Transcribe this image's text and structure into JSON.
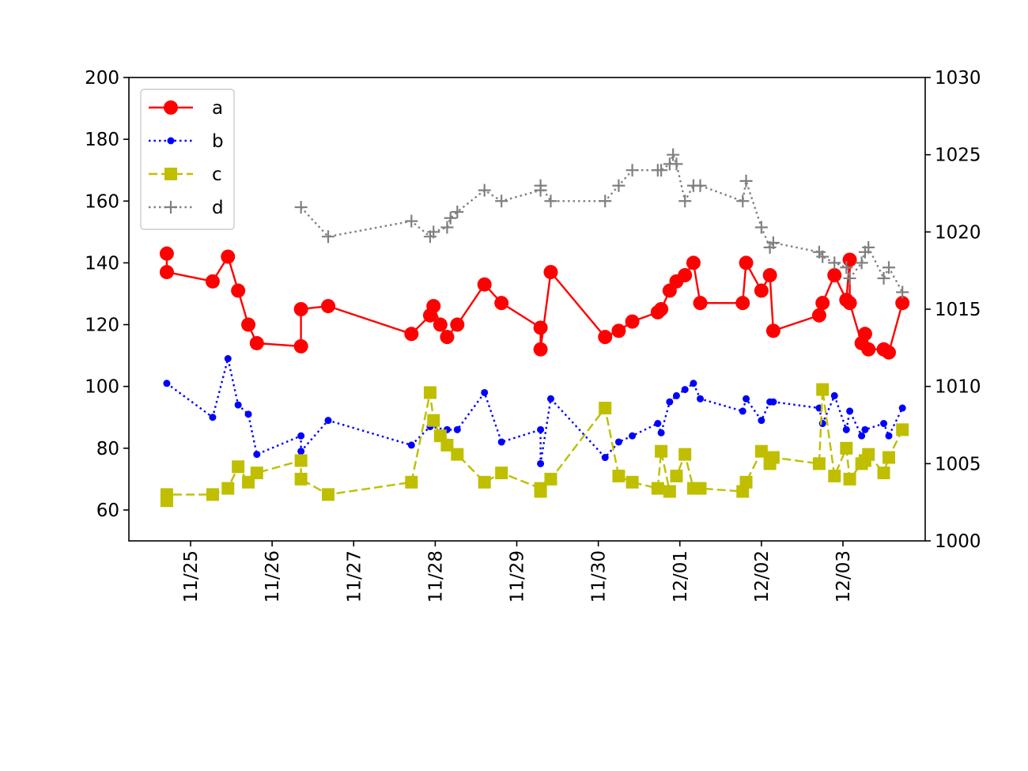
{
  "chart_data": {
    "type": "line",
    "title": "",
    "xlabel": "",
    "ylabel": "",
    "x_tick_labels": [
      "11/25",
      "11/26",
      "11/27",
      "11/28",
      "11/29",
      "11/30",
      "12/01",
      "12/02",
      "12/03"
    ],
    "ylim_left": [
      50,
      200
    ],
    "yticks_left": [
      60,
      80,
      100,
      120,
      140,
      160,
      180,
      200
    ],
    "ylim_right": [
      1000,
      1030
    ],
    "yticks_right": [
      1000,
      1005,
      1010,
      1015,
      1020,
      1025,
      1030
    ],
    "grid": false,
    "legend_position": "upper-left",
    "series": [
      {
        "name": "a",
        "axis": "left",
        "color": "#ff0000",
        "line_style": "solid",
        "marker": "circle",
        "points": [
          [
            "11/24 17:00",
            143
          ],
          [
            "11/24 17:00",
            137
          ],
          [
            "11/25 06:30",
            134
          ],
          [
            "11/25 11:00",
            142
          ],
          [
            "11/25 14:00",
            131
          ],
          [
            "11/25 17:00",
            120
          ],
          [
            "11/25 19:30",
            114
          ],
          [
            "11/26 08:30",
            113
          ],
          [
            "11/26 08:30",
            125
          ],
          [
            "11/26 16:30",
            126
          ],
          [
            "11/27 17:00",
            117
          ],
          [
            "11/27 22:30",
            123
          ],
          [
            "11/27 23:30",
            126
          ],
          [
            "11/28 01:30",
            120
          ],
          [
            "11/28 03:30",
            116
          ],
          [
            "11/28 06:30",
            120
          ],
          [
            "11/28 14:30",
            133
          ],
          [
            "11/28 19:30",
            127
          ],
          [
            "11/29 07:00",
            119
          ],
          [
            "11/29 07:00",
            112
          ],
          [
            "11/29 10:00",
            137
          ],
          [
            "11/30 02:00",
            116
          ],
          [
            "11/30 06:00",
            118
          ],
          [
            "11/30 10:00",
            121
          ],
          [
            "11/30 17:30",
            124
          ],
          [
            "11/30 18:30",
            125
          ],
          [
            "11/30 21:00",
            131
          ],
          [
            "11/30 23:00",
            134
          ],
          [
            "12/01 01:30",
            136
          ],
          [
            "12/01 04:00",
            140
          ],
          [
            "12/01 06:00",
            127
          ],
          [
            "12/01 18:30",
            127
          ],
          [
            "12/01 19:30",
            140
          ],
          [
            "12/02 00:00",
            131
          ],
          [
            "12/02 02:30",
            136
          ],
          [
            "12/02 03:30",
            118
          ],
          [
            "12/02 17:00",
            123
          ],
          [
            "12/02 18:00",
            127
          ],
          [
            "12/02 21:30",
            136
          ],
          [
            "12/03 01:00",
            128
          ],
          [
            "12/03 02:00",
            141
          ],
          [
            "12/03 02:00",
            127
          ],
          [
            "12/03 05:30",
            114
          ],
          [
            "12/03 06:30",
            117
          ],
          [
            "12/03 07:30",
            112
          ],
          [
            "12/03 12:00",
            112
          ],
          [
            "12/03 13:30",
            111
          ],
          [
            "12/03 17:30",
            127
          ]
        ]
      },
      {
        "name": "b",
        "axis": "left",
        "color": "#0000ff",
        "line_style": "dotted",
        "marker": "point",
        "points": [
          [
            "11/24 17:00",
            101
          ],
          [
            "11/25 06:30",
            90
          ],
          [
            "11/25 11:00",
            109
          ],
          [
            "11/25 14:00",
            94
          ],
          [
            "11/25 17:00",
            91
          ],
          [
            "11/25 19:30",
            78
          ],
          [
            "11/26 08:30",
            84
          ],
          [
            "11/26 08:30",
            79
          ],
          [
            "11/26 16:30",
            89
          ],
          [
            "11/27 17:00",
            81
          ],
          [
            "11/27 22:30",
            87
          ],
          [
            "11/28 03:30",
            86
          ],
          [
            "11/28 06:30",
            86
          ],
          [
            "11/28 14:30",
            98
          ],
          [
            "11/28 19:30",
            82
          ],
          [
            "11/29 07:00",
            86
          ],
          [
            "11/29 07:00",
            75
          ],
          [
            "11/29 10:00",
            96
          ],
          [
            "11/30 02:00",
            77
          ],
          [
            "11/30 06:00",
            82
          ],
          [
            "11/30 10:00",
            84
          ],
          [
            "11/30 17:30",
            88
          ],
          [
            "11/30 18:30",
            85
          ],
          [
            "11/30 21:00",
            95
          ],
          [
            "11/30 23:00",
            97
          ],
          [
            "12/01 01:30",
            99
          ],
          [
            "12/01 04:00",
            101
          ],
          [
            "12/01 06:00",
            96
          ],
          [
            "12/01 18:30",
            92
          ],
          [
            "12/01 19:30",
            96
          ],
          [
            "12/02 00:00",
            89
          ],
          [
            "12/02 02:30",
            95
          ],
          [
            "12/02 03:30",
            95
          ],
          [
            "12/02 17:00",
            93
          ],
          [
            "12/02 18:00",
            88
          ],
          [
            "12/02 21:30",
            97
          ],
          [
            "12/03 01:00",
            86
          ],
          [
            "12/03 02:00",
            92
          ],
          [
            "12/03 05:30",
            84
          ],
          [
            "12/03 06:30",
            86
          ],
          [
            "12/03 12:00",
            88
          ],
          [
            "12/03 13:30",
            84
          ],
          [
            "12/03 17:30",
            93
          ]
        ]
      },
      {
        "name": "c",
        "axis": "left",
        "color": "#bfbf00",
        "line_style": "dashed",
        "marker": "square",
        "points": [
          [
            "11/24 17:00",
            63
          ],
          [
            "11/24 17:00",
            65
          ],
          [
            "11/25 06:30",
            65
          ],
          [
            "11/25 11:00",
            67
          ],
          [
            "11/25 14:00",
            74
          ],
          [
            "11/25 17:00",
            69
          ],
          [
            "11/25 19:30",
            72
          ],
          [
            "11/26 08:30",
            76
          ],
          [
            "11/26 08:30",
            70
          ],
          [
            "11/26 16:30",
            65
          ],
          [
            "11/27 17:00",
            69
          ],
          [
            "11/27 22:30",
            98
          ],
          [
            "11/27 23:30",
            89
          ],
          [
            "11/28 01:30",
            84
          ],
          [
            "11/28 03:30",
            81
          ],
          [
            "11/28 06:30",
            78
          ],
          [
            "11/28 14:30",
            69
          ],
          [
            "11/28 19:30",
            72
          ],
          [
            "11/29 07:00",
            67
          ],
          [
            "11/29 07:00",
            66
          ],
          [
            "11/29 10:00",
            70
          ],
          [
            "11/30 02:00",
            93
          ],
          [
            "11/30 06:00",
            71
          ],
          [
            "11/30 10:00",
            69
          ],
          [
            "11/30 17:30",
            67
          ],
          [
            "11/30 18:30",
            79
          ],
          [
            "11/30 21:00",
            66
          ],
          [
            "11/30 23:00",
            71
          ],
          [
            "12/01 01:30",
            78
          ],
          [
            "12/01 04:00",
            67
          ],
          [
            "12/01 06:00",
            67
          ],
          [
            "12/01 18:30",
            66
          ],
          [
            "12/01 19:30",
            69
          ],
          [
            "12/02 00:00",
            79
          ],
          [
            "12/02 02:30",
            75
          ],
          [
            "12/02 03:30",
            77
          ],
          [
            "12/02 17:00",
            75
          ],
          [
            "12/02 18:00",
            99
          ],
          [
            "12/02 21:30",
            71
          ],
          [
            "12/03 01:00",
            80
          ],
          [
            "12/03 02:00",
            70
          ],
          [
            "12/03 05:30",
            75
          ],
          [
            "12/03 06:30",
            76
          ],
          [
            "12/03 07:30",
            78
          ],
          [
            "12/03 12:00",
            72
          ],
          [
            "12/03 13:30",
            77
          ],
          [
            "12/03 17:30",
            86
          ]
        ]
      },
      {
        "name": "d",
        "axis": "right",
        "color": "#808080",
        "line_style": "dotted",
        "marker": "plus",
        "points": [
          [
            "11/26 08:30",
            1021.6
          ],
          [
            "11/26 16:30",
            1019.7
          ],
          [
            "11/27 17:00",
            1020.7
          ],
          [
            "11/27 22:30",
            1019.7
          ],
          [
            "11/27 23:30",
            1020.0
          ],
          [
            "11/28 03:30",
            1020.3
          ],
          [
            "11/28 04:30",
            1020.9
          ],
          [
            "11/28 06:30",
            1021.3
          ],
          [
            "11/28 14:30",
            1022.7
          ],
          [
            "11/28 19:30",
            1022.0
          ],
          [
            "11/29 07:00",
            1022.7
          ],
          [
            "11/29 07:00",
            1023.0
          ],
          [
            "11/29 10:00",
            1022.0
          ],
          [
            "11/30 02:00",
            1022.0
          ],
          [
            "11/30 06:00",
            1023.0
          ],
          [
            "11/30 10:00",
            1024.0
          ],
          [
            "11/30 17:30",
            1024.0
          ],
          [
            "11/30 18:30",
            1024.0
          ],
          [
            "11/30 21:00",
            1024.4
          ],
          [
            "11/30 22:00",
            1025.0
          ],
          [
            "11/30 23:00",
            1024.4
          ],
          [
            "12/01 01:30",
            1022.0
          ],
          [
            "12/01 04:00",
            1023.0
          ],
          [
            "12/01 06:00",
            1023.0
          ],
          [
            "12/01 18:30",
            1022.0
          ],
          [
            "12/01 19:30",
            1023.3
          ],
          [
            "12/02 00:00",
            1020.3
          ],
          [
            "12/02 02:30",
            1019.0
          ],
          [
            "12/02 03:30",
            1019.3
          ],
          [
            "12/02 17:00",
            1018.7
          ],
          [
            "12/02 18:00",
            1018.4
          ],
          [
            "12/02 21:30",
            1018.0
          ],
          [
            "12/03 01:00",
            1017.7
          ],
          [
            "12/03 02:00",
            1017.0
          ],
          [
            "12/03 05:30",
            1018.0
          ],
          [
            "12/03 06:30",
            1018.7
          ],
          [
            "12/03 07:30",
            1019.0
          ],
          [
            "12/03 12:00",
            1017.0
          ],
          [
            "12/03 13:30",
            1017.7
          ],
          [
            "12/03 17:30",
            1016.1
          ]
        ]
      }
    ]
  }
}
